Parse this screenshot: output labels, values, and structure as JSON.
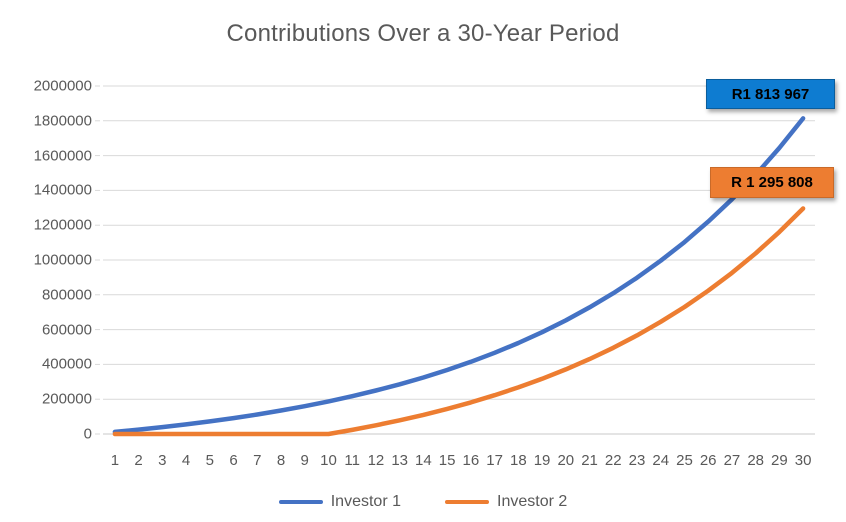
{
  "title": "Contributions Over a 30-Year Period",
  "chart_data": {
    "type": "line",
    "title": "Contributions Over a 30-Year Period",
    "categories": [
      1,
      2,
      3,
      4,
      5,
      6,
      7,
      8,
      9,
      10,
      11,
      12,
      13,
      14,
      15,
      16,
      17,
      18,
      19,
      20,
      21,
      22,
      23,
      24,
      25,
      26,
      27,
      28,
      29,
      30
    ],
    "series": [
      {
        "name": "Investor 1",
        "color": "#4472C4",
        "values": [
          12000,
          25146,
          39548,
          55326,
          72608,
          91540,
          112280,
          135000,
          159894,
          187163,
          217040,
          249764,
          285623,
          324906,
          367944,
          415076,
          466710,
          523270,
          585247,
          653140,
          727516,
          808994,
          898245,
          996035,
          1103160,
          1220510,
          1349046,
          1489876,
          1644160,
          1813967
        ]
      },
      {
        "name": "Investor 2",
        "color": "#ED7D31",
        "values": [
          0,
          0,
          0,
          0,
          0,
          0,
          0,
          0,
          0,
          0,
          23810,
          49889,
          78461,
          109776,
          144057,
          181630,
          222792,
          267870,
          317260,
          371362,
          430650,
          495573,
          566729,
          644667,
          730034,
          823553,
          926012,
          1038268,
          1161226,
          1295808
        ]
      }
    ],
    "xlabel": "",
    "ylabel": "",
    "ylim": [
      0,
      2000000
    ],
    "ytick_step": 200000,
    "ytick_labels": [
      "0",
      "200000",
      "400000",
      "600000",
      "800000",
      "1000000",
      "1200000",
      "1400000",
      "1600000",
      "1800000",
      "2000000"
    ],
    "grid": true,
    "gridline_color": "#D9D9D9",
    "legend_position": "bottom"
  },
  "data_labels": [
    {
      "series": "Investor 1",
      "text": "R1 813 967",
      "bg": "#0E7CD1"
    },
    {
      "series": "Investor 2",
      "text": "R 1 295 808",
      "bg": "#ED7D31"
    }
  ],
  "legend": {
    "items": [
      {
        "label": "Investor 1",
        "color": "#4472C4"
      },
      {
        "label": "Investor 2",
        "color": "#ED7D31"
      }
    ]
  },
  "colors": {
    "background": "#FFFFFF",
    "text": "#595959",
    "label_text": "#000000"
  }
}
